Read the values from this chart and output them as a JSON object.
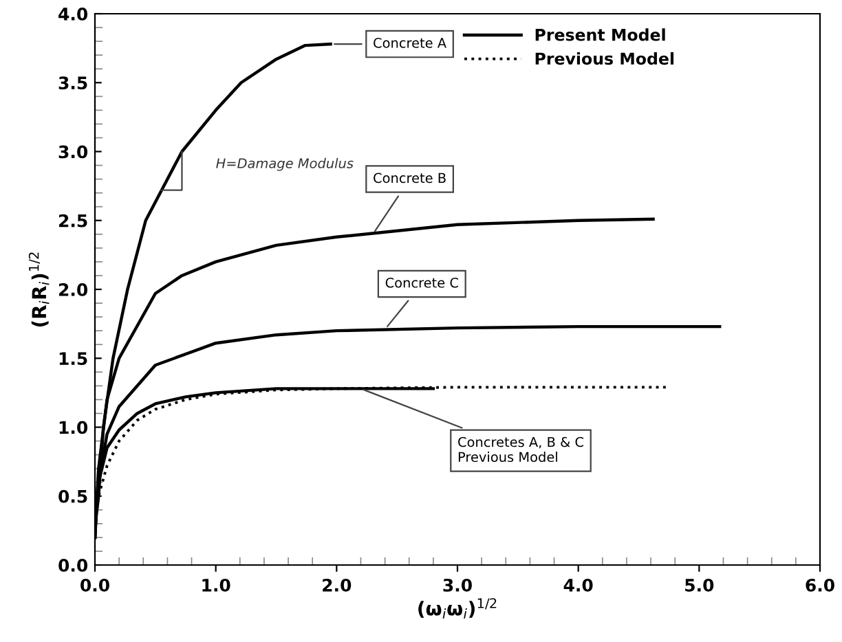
{
  "chart_data": {
    "type": "line",
    "xlabel": "(ω$_{i}$ω$_{i}$)$^{1/2}$",
    "ylabel": "(R$_{i}$R$_{i}$)$^{1/2}$",
    "xlim": [
      0,
      6
    ],
    "ylim": [
      0,
      4
    ],
    "xticks": [
      {
        "value": 0,
        "label": "0.0"
      },
      {
        "value": 1,
        "label": "1.0"
      },
      {
        "value": 2,
        "label": "2.0"
      },
      {
        "value": 3,
        "label": "3.0"
      },
      {
        "value": 4,
        "label": "4.0"
      },
      {
        "value": 5,
        "label": "5.0"
      },
      {
        "value": 6,
        "label": "6.0"
      }
    ],
    "yticks": [
      {
        "value": 0,
        "label": "0.0"
      },
      {
        "value": 0.5,
        "label": "0.5"
      },
      {
        "value": 1,
        "label": "1.0"
      },
      {
        "value": 1.5,
        "label": "1.5"
      },
      {
        "value": 2,
        "label": "2.0"
      },
      {
        "value": 2.5,
        "label": "2.5"
      },
      {
        "value": 3,
        "label": "3.0"
      },
      {
        "value": 3.5,
        "label": "3.5"
      },
      {
        "value": 4,
        "label": "4.0"
      }
    ],
    "grid": false,
    "legend": "top right",
    "marker": "none",
    "series": [
      {
        "name": "Present Model",
        "color": "#000000",
        "line_style": "solid",
        "x": [
          0,
          0.01,
          0.03,
          0.07,
          0.15,
          0.27,
          0.42,
          0.72,
          1.0,
          1.21,
          1.5,
          1.74,
          1.95
        ],
        "values": [
          0.2,
          0.35,
          0.5,
          1.0,
          1.5,
          2.0,
          2.5,
          3.0,
          3.3,
          3.5,
          3.67,
          3.77,
          3.78
        ]
      },
      {
        "color": "#000000",
        "line_style": "solid",
        "x": [
          0,
          0.01,
          0.03,
          0.1,
          0.2,
          0.5,
          0.72,
          1.0,
          1.5,
          2.0,
          3.0,
          4.0,
          4.62
        ],
        "values": [
          0.2,
          0.4,
          0.7,
          1.2,
          1.5,
          1.97,
          2.1,
          2.2,
          2.32,
          2.38,
          2.47,
          2.5,
          2.51
        ]
      },
      {
        "color": "#000000",
        "line_style": "solid",
        "x": [
          0,
          0.01,
          0.03,
          0.1,
          0.2,
          0.5,
          1.0,
          1.5,
          2.0,
          3.0,
          4.0,
          5.17
        ],
        "values": [
          0.2,
          0.4,
          0.6,
          0.95,
          1.15,
          1.45,
          1.61,
          1.67,
          1.7,
          1.72,
          1.73,
          1.73
        ]
      },
      {
        "color": "#000000",
        "line_style": "solid",
        "x": [
          0,
          0.01,
          0.03,
          0.1,
          0.2,
          0.35,
          0.5,
          0.75,
          1.0,
          1.5,
          2.0,
          2.8
        ],
        "values": [
          0.2,
          0.4,
          0.6,
          0.85,
          0.98,
          1.1,
          1.17,
          1.22,
          1.25,
          1.28,
          1.28,
          1.28
        ]
      },
      {
        "name": "Previous Model",
        "color": "#000000",
        "line_style": "dotted",
        "x": [
          0,
          0.01,
          0.03,
          0.1,
          0.2,
          0.35,
          0.5,
          0.75,
          1.0,
          1.5,
          2.0,
          3.0,
          4.0,
          4.75
        ],
        "values": [
          0.2,
          0.35,
          0.5,
          0.72,
          0.9,
          1.05,
          1.13,
          1.2,
          1.24,
          1.27,
          1.28,
          1.29,
          1.29,
          1.29
        ]
      }
    ],
    "annotations": [
      {
        "text": "Concrete A",
        "x": 1.95,
        "y": 3.78
      },
      {
        "text": "Concrete B",
        "x": 2.3,
        "y": 2.4
      },
      {
        "text": "Concrete C",
        "x": 2.4,
        "y": 1.71
      },
      {
        "text": "Concretes A, B & C\nPrevious Model",
        "x": 2.2,
        "y": 1.28
      },
      "H=Damage Modulus"
    ]
  }
}
